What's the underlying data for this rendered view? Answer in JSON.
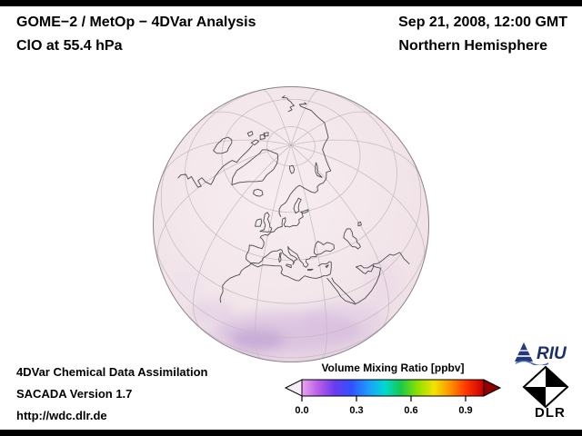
{
  "header": {
    "title": "GOME−2 / MetOp − 4DVar Analysis",
    "subtitle": "ClO at 55.4 hPa",
    "datetime": "Sep 21, 2008, 12:00 GMT",
    "region": "Northern Hemisphere"
  },
  "footer": {
    "line1": "4DVar Chemical Data Assimilation",
    "line2": "SACADA Version 1.7",
    "line3": "http://wdc.dlr.de"
  },
  "colorbar": {
    "title": "Volume Mixing Ratio [ppbv]",
    "ticks": [
      "0.0",
      "0.3",
      "0.6",
      "0.9"
    ],
    "min": 0.0,
    "max": 1.0,
    "palette": [
      "#e9a6ef",
      "#b75de8",
      "#6a3af0",
      "#2f52ff",
      "#1e9bff",
      "#00d9d2",
      "#17c94a",
      "#8fe000",
      "#f2e300",
      "#ff9000",
      "#ff3000",
      "#c40000"
    ],
    "under_arrow_color": "#f6eef8",
    "over_arrow_color": "#8f0000"
  },
  "logos": {
    "riu": "RIU",
    "dlr": "DLR"
  },
  "chart_data": {
    "type": "heatmap",
    "title": "ClO volume mixing ratio at 55.4 hPa, Northern Hemisphere",
    "projection": "orthographic globe centered near 55N 15E, graticule 20 deg parallels / 30 deg meridians",
    "colorbar_title": "Volume Mixing Ratio [ppbv]",
    "colorbar_ticks": [
      0.0,
      0.3,
      0.6,
      0.9
    ],
    "field_summary": "near-zero pale field (< 0.1 ppbv) over most of the hemisphere with faint violet patches of ~0.1-0.2 ppbv along the tropical limb at the bottom of the globe"
  }
}
